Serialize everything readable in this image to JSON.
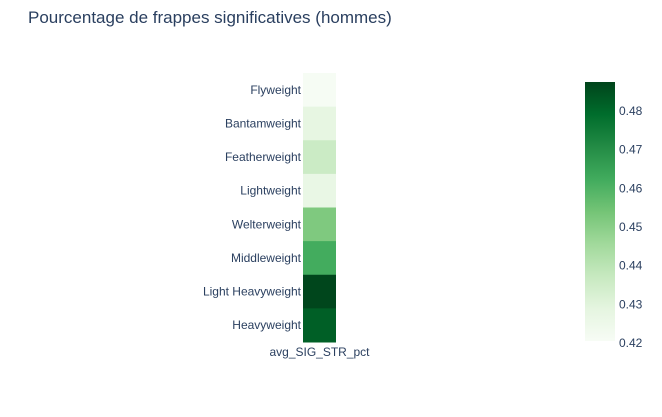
{
  "chart_data": {
    "type": "heatmap",
    "title": "Pourcentage de frappes significatives (hommes)",
    "x_categories": [
      "avg_SIG_STR_pct"
    ],
    "y_categories": [
      "Flyweight",
      "Bantamweight",
      "Featherweight",
      "Lightweight",
      "Welterweight",
      "Middleweight",
      "Light Heavyweight",
      "Heavyweight"
    ],
    "values": [
      0.421,
      0.428,
      0.436,
      0.427,
      0.452,
      0.462,
      0.487,
      0.482
    ],
    "colorscale": "Greens",
    "colorbar": {
      "range": [
        0.4205,
        0.4875
      ],
      "ticks": [
        0.42,
        0.43,
        0.44,
        0.45,
        0.46,
        0.47,
        0.48
      ],
      "tick_labels": [
        "0.42",
        "0.43",
        "0.44",
        "0.45",
        "0.46",
        "0.47",
        "0.48"
      ]
    }
  }
}
